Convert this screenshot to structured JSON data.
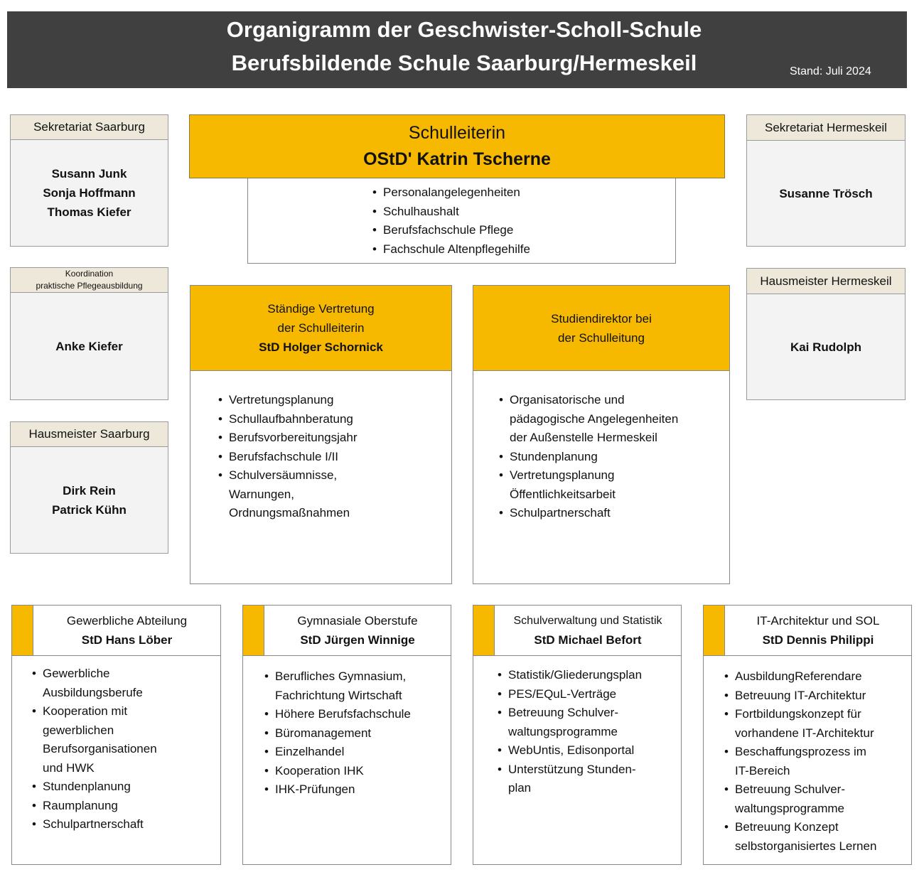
{
  "header": {
    "title_line1": "Organigramm der Geschwister-Scholl-Schule",
    "title_line2": "Berufsbildende Schule Saarburg/Hermeskeil",
    "stand": "Stand: Juli 2024"
  },
  "colors": {
    "accent": "#f6b900",
    "header_bg": "#404040",
    "side_header_bg": "#eee8da",
    "side_body_bg": "#f3f3f3"
  },
  "left": [
    {
      "title": "Sekretariat Saarburg",
      "names": [
        "Susann Junk",
        "Sonja Hoffmann",
        "Thomas Kiefer"
      ]
    },
    {
      "title_line1": "Koordination",
      "title_line2": "praktische Pflegeausbildung",
      "names": [
        "Anke Kiefer"
      ]
    },
    {
      "title": "Hausmeister Saarburg",
      "names": [
        "Dirk Rein",
        "Patrick Kühn"
      ]
    }
  ],
  "right": [
    {
      "title": "Sekretariat Hermeskeil",
      "names": [
        "Susanne Trösch"
      ]
    },
    {
      "title": "Hausmeister Hermeskeil",
      "names": [
        "Kai Rudolph"
      ]
    }
  ],
  "leader": {
    "role": "Schulleiterin",
    "name": "OStD' Katrin Tscherne",
    "tasks": [
      "Personalangelegenheiten",
      "Schulhaushalt",
      "Berufsfachschule Pflege",
      "Fachschule Altenpflegehilfe"
    ]
  },
  "deputy": {
    "line1": "Ständige Vertretung",
    "line2": "der Schulleiterin",
    "name": "StD Holger Schornick",
    "tasks": [
      "Vertretungsplanung",
      "Schullaufbahnberatung",
      "Berufsvorbereitungsjahr",
      "Berufsfachschule I/II",
      "Schulversäumnisse,\nWarnungen,\nOrdnungsmaßnahmen"
    ]
  },
  "director": {
    "line1": "Studiendirektor bei",
    "line2": "der Schulleitung",
    "tasks": [
      "Organisatorische und\npädagogische Angelegenheiten\nder Außenstelle Hermeskeil",
      "Stundenplanung",
      "Vertretungsplanung\nÖffentlichkeitsarbeit",
      "Schulpartnerschaft"
    ]
  },
  "departments": [
    {
      "title": "Gewerbliche Abteilung",
      "name": "StD Hans Löber",
      "tasks": [
        "Gewerbliche\nAusbildungsberufe",
        "Kooperation mit\ngewerblichen\nBerufsorganisationen\nund HWK",
        "Stundenplanung",
        "Raumplanung",
        "Schulpartnerschaft"
      ]
    },
    {
      "title": "Gymnasiale Oberstufe",
      "name": "StD Jürgen Winnige",
      "tasks": [
        "Berufliches Gymnasium,\nFachrichtung Wirtschaft",
        "Höhere Berufsfachschule",
        "Büromanagement",
        "Einzelhandel",
        "Kooperation IHK",
        "IHK-Prüfungen"
      ]
    },
    {
      "title": "Schulverwaltung und Statistik",
      "name": "StD Michael Befort",
      "tasks": [
        "Statistik/Gliederungsplan",
        "PES/EQuL-Verträge",
        "Betreuung Schulver-\nwaltungsprogramme",
        "WebUntis, Edisonportal",
        "Unterstützung Stunden-\nplan"
      ]
    },
    {
      "title": "IT-Architektur und SOL",
      "name": "StD Dennis Philippi",
      "tasks": [
        "AusbildungReferendare",
        "Betreuung IT-Architektur",
        "Fortbildungskonzept für\n vorhandene IT-Architektur",
        "Beschaffungsprozess im\n IT-Bereich",
        "Betreuung Schulver-\nwaltungsprogramme",
        "Betreuung Konzept\nselbstorganisiertes Lernen"
      ]
    }
  ]
}
